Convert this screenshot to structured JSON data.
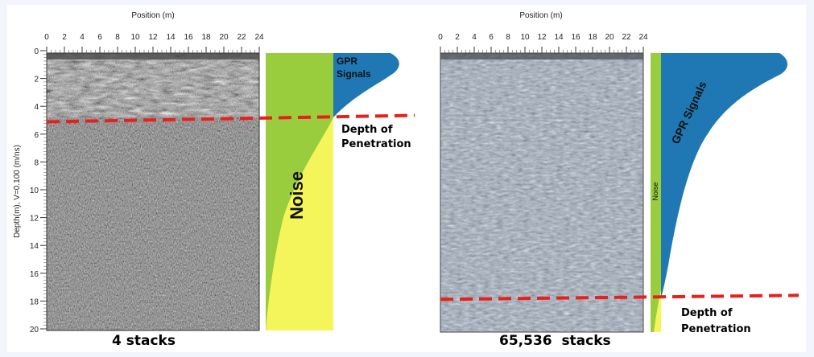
{
  "left_panel": {
    "x_axis_title": "Position (m)",
    "y_axis_title": "Depth(m), V=0.100 (m/ns)",
    "x_ticks": [
      "0",
      "2",
      "4",
      "6",
      "8",
      "10",
      "12",
      "14",
      "16",
      "18",
      "20",
      "22",
      "24"
    ],
    "y_ticks": [
      "0",
      "2",
      "4",
      "6",
      "8",
      "10",
      "12",
      "14",
      "16",
      "18",
      "20"
    ],
    "caption": "4 stacks",
    "penetration_depth_m": 5,
    "signal_label_line1": "GPR",
    "signal_label_line2": "Signals",
    "noise_label": "Noise",
    "depth_label_line1": "Depth of",
    "depth_label_line2": "Penetration"
  },
  "right_panel": {
    "x_axis_title": "Position (m)",
    "x_ticks": [
      "0",
      "2",
      "4",
      "6",
      "8",
      "10",
      "12",
      "14",
      "16",
      "18",
      "20",
      "22",
      "24"
    ],
    "caption": "65,536  stacks",
    "penetration_depth_m": 18,
    "signal_label": "GPR Signals",
    "noise_label": "Noise",
    "depth_label_line1": "Depth of",
    "depth_label_line2": "Penetration"
  },
  "colors": {
    "signal": "#1f78b4",
    "noise_green": "#9acd3e",
    "noise_yellow": "#f4f55a",
    "penetration_line": "#e8201c"
  }
}
